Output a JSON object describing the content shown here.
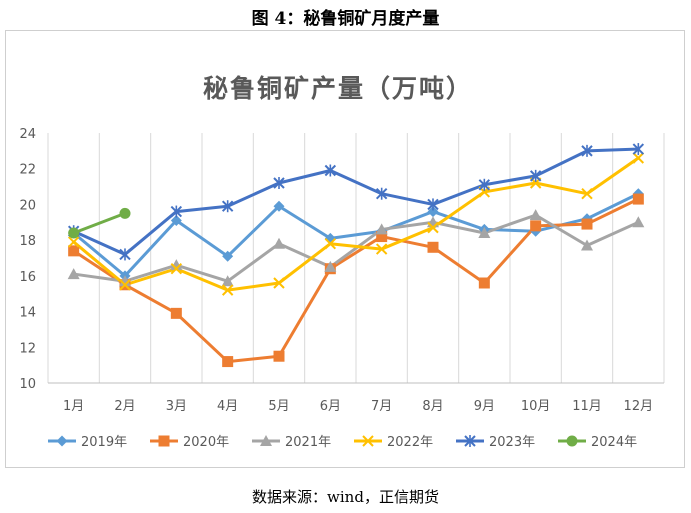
{
  "figure_title": "图 4：秘鲁铜矿月度产量",
  "source_note": "数据来源：wind，正信期货",
  "chart_data": {
    "type": "line",
    "title": "秘鲁铜矿产量（万吨）",
    "xlabel": "",
    "ylabel": "",
    "categories": [
      "1月",
      "2月",
      "3月",
      "4月",
      "5月",
      "6月",
      "7月",
      "8月",
      "9月",
      "10月",
      "11月",
      "12月"
    ],
    "ylim": [
      10,
      24
    ],
    "yticks": [
      10,
      12,
      14,
      16,
      18,
      20,
      22,
      24
    ],
    "grid": "vertical",
    "legend": "bottom",
    "series": [
      {
        "name": "2019年",
        "color": "#5b9bd5",
        "marker": "diamond",
        "values": [
          18.4,
          16.0,
          19.1,
          17.1,
          19.9,
          18.1,
          18.5,
          19.6,
          18.6,
          18.5,
          19.2,
          20.6
        ]
      },
      {
        "name": "2020年",
        "color": "#ed7d31",
        "marker": "square",
        "values": [
          17.4,
          15.5,
          13.9,
          11.2,
          11.5,
          16.4,
          18.2,
          17.6,
          15.6,
          18.8,
          18.9,
          20.3
        ]
      },
      {
        "name": "2021年",
        "color": "#a5a5a5",
        "marker": "triangle",
        "values": [
          16.1,
          15.7,
          16.6,
          15.7,
          17.8,
          16.5,
          18.6,
          19.0,
          18.4,
          19.4,
          17.7,
          19.0
        ]
      },
      {
        "name": "2022年",
        "color": "#ffc000",
        "marker": "x",
        "values": [
          17.9,
          15.5,
          16.4,
          15.2,
          15.6,
          17.8,
          17.5,
          18.7,
          20.7,
          21.2,
          20.6,
          22.6
        ]
      },
      {
        "name": "2023年",
        "color": "#4472c4",
        "marker": "star",
        "values": [
          18.5,
          17.2,
          19.6,
          19.9,
          21.2,
          21.9,
          20.6,
          20.0,
          21.1,
          21.6,
          23.0,
          23.1
        ]
      },
      {
        "name": "2024年",
        "color": "#70ad47",
        "marker": "circle",
        "values": [
          18.4,
          19.5,
          null,
          null,
          null,
          null,
          null,
          null,
          null,
          null,
          null,
          null
        ]
      }
    ]
  }
}
